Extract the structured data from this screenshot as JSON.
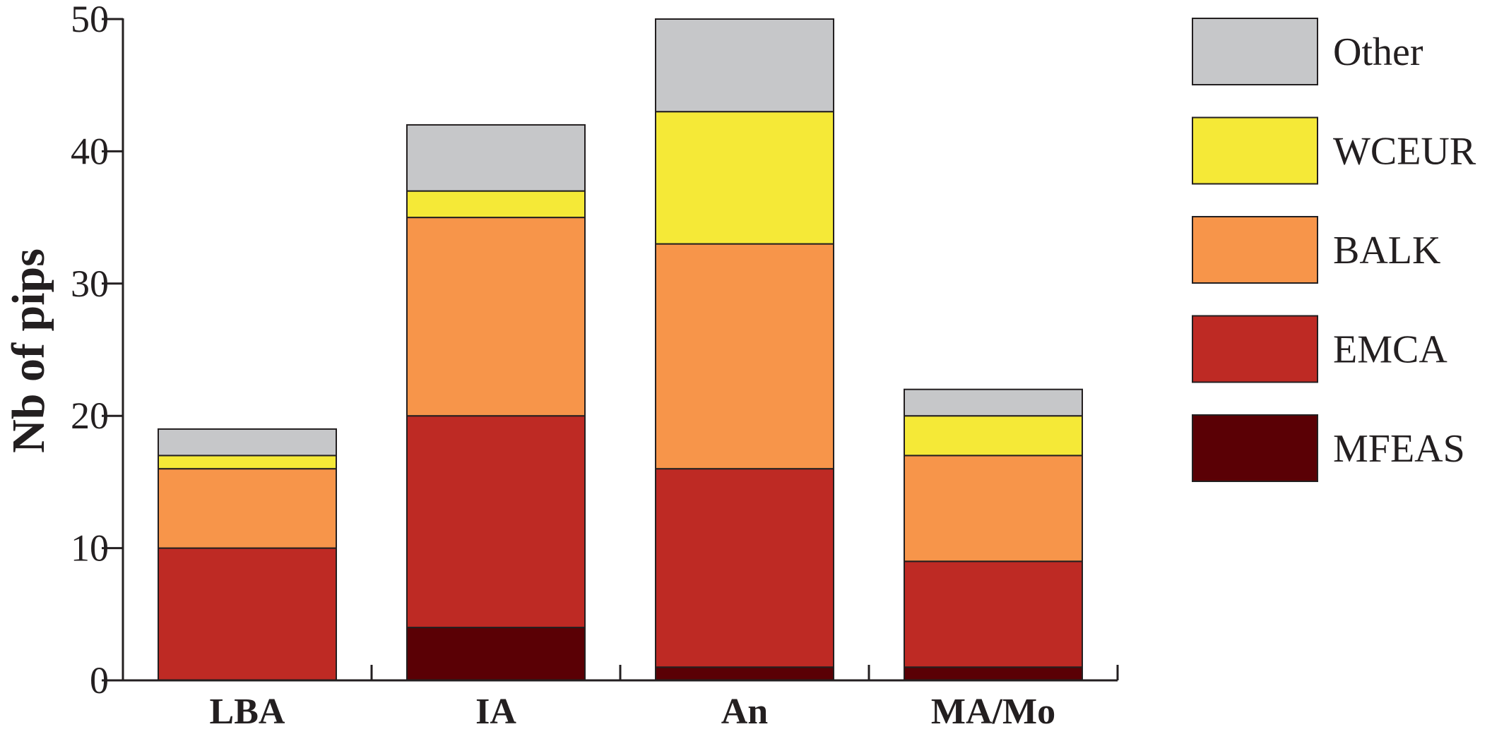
{
  "chart_data": {
    "type": "bar",
    "stacked": true,
    "title": "",
    "xlabel": "",
    "ylabel": "Nb of pips",
    "ylim": [
      0,
      50
    ],
    "yticks": [
      0,
      10,
      20,
      30,
      40,
      50
    ],
    "grid": false,
    "legend_position": "right",
    "categories": [
      "LBA",
      "IA",
      "An",
      "MA/Mo"
    ],
    "series": [
      {
        "name": "MFEAS",
        "color": "#5a0005",
        "values": [
          0,
          4,
          1,
          1
        ]
      },
      {
        "name": "EMCA",
        "color": "#be2a24",
        "values": [
          10,
          16,
          15,
          8
        ]
      },
      {
        "name": "BALK",
        "color": "#f7954a",
        "values": [
          6,
          15,
          17,
          8
        ]
      },
      {
        "name": "WCEUR",
        "color": "#f5e937",
        "values": [
          1,
          2,
          10,
          3
        ]
      },
      {
        "name": "Other",
        "color": "#c6c7c9",
        "values": [
          2,
          5,
          7,
          2
        ]
      }
    ]
  }
}
